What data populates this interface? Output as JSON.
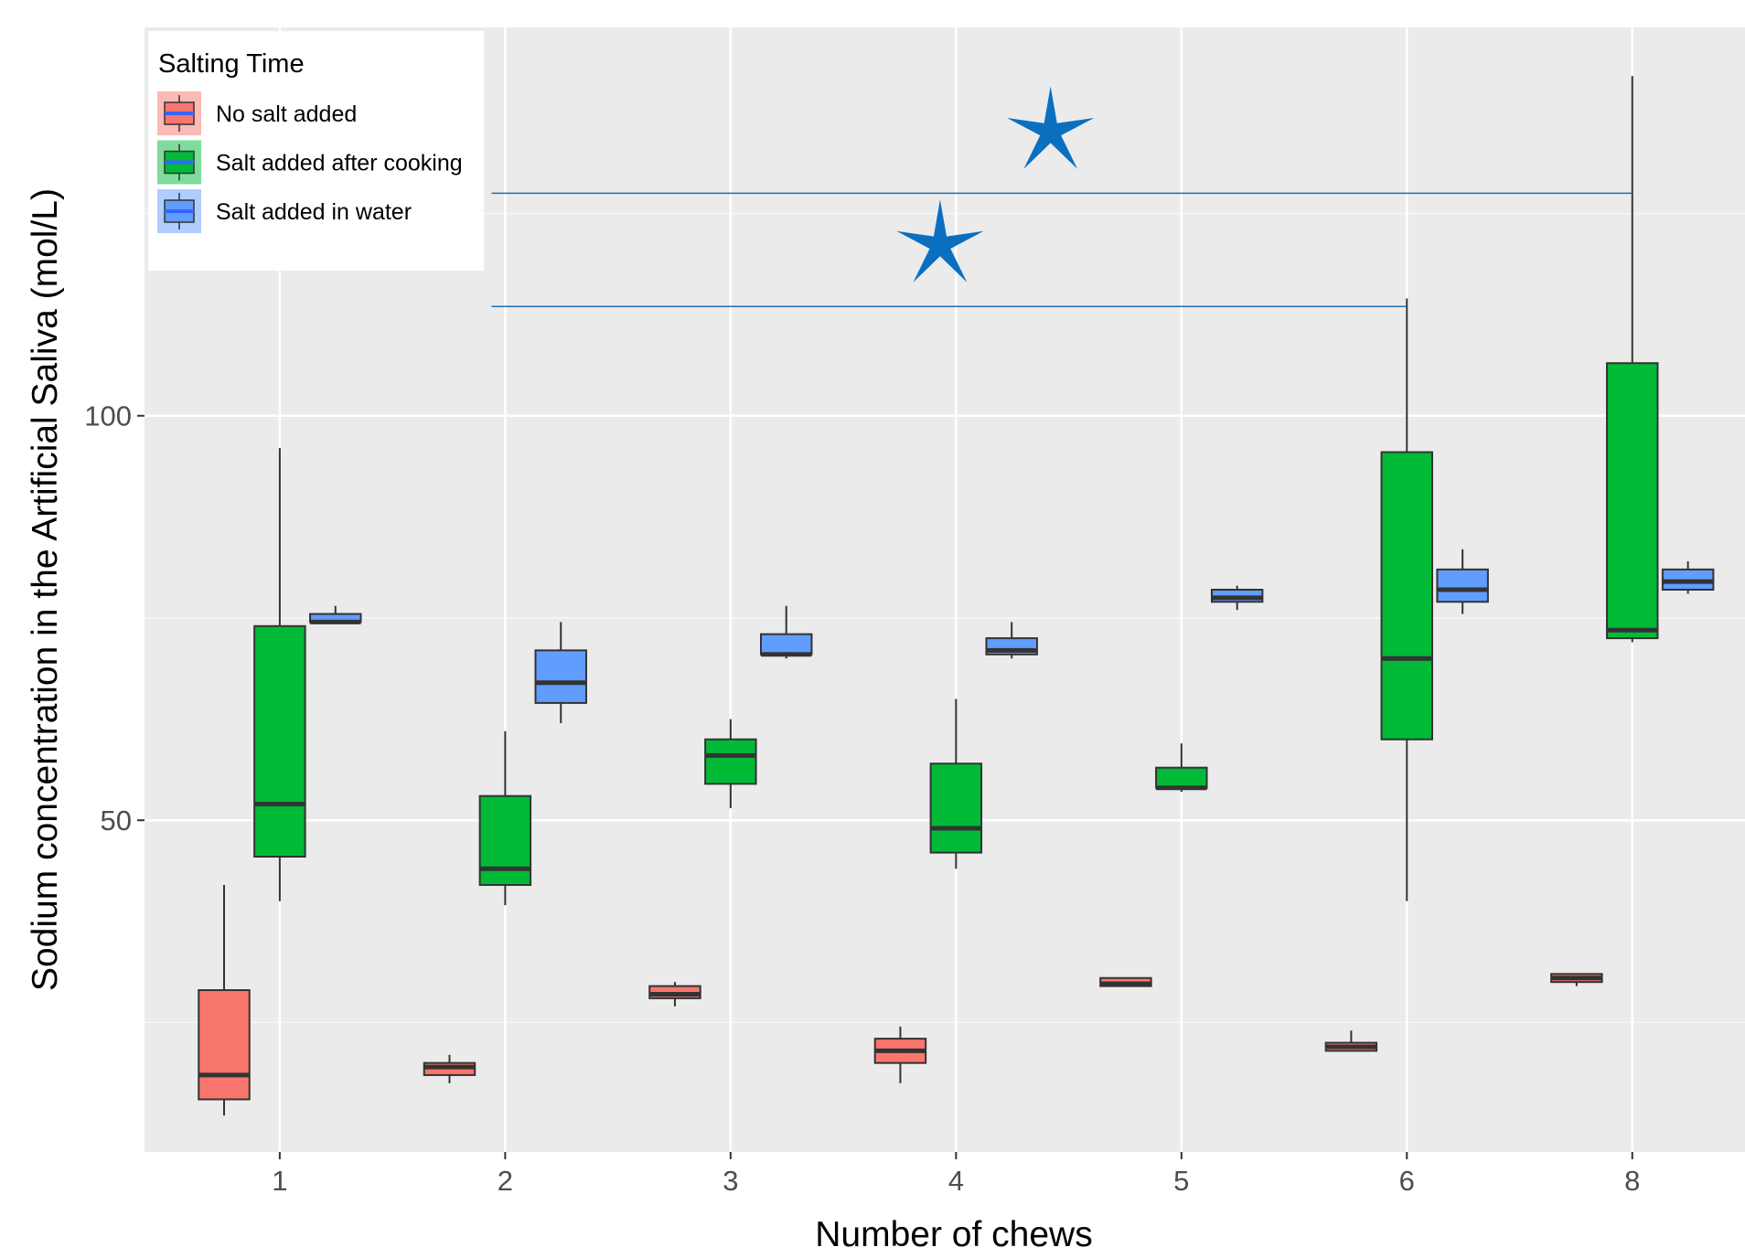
{
  "chart_data": {
    "type": "boxplot",
    "xlabel": "Number of chews",
    "ylabel": "Sodium concentration in the Artificial Saliva (mol/L)",
    "categories": [
      "1",
      "2",
      "3",
      "4",
      "5",
      "6",
      "8"
    ],
    "y_ticks": [
      50,
      100
    ],
    "ylim": [
      9,
      148
    ],
    "grid": true,
    "legend": {
      "title": "Salting Time",
      "position": "top-left"
    },
    "series": [
      {
        "name": "No salt added",
        "color": "#F8766D",
        "boxes": [
          {
            "min": 13.5,
            "q1": 15.5,
            "median": 18.5,
            "q3": 29,
            "max": 42
          },
          {
            "min": 17.5,
            "q1": 18.5,
            "median": 19.5,
            "q3": 20,
            "max": 21
          },
          {
            "min": 27,
            "q1": 28,
            "median": 28.5,
            "q3": 29.5,
            "max": 30
          },
          {
            "min": 17.5,
            "q1": 20,
            "median": 21.5,
            "q3": 23,
            "max": 24.5
          },
          {
            "min": 29.5,
            "q1": 29.5,
            "median": 29.8,
            "q3": 30.5,
            "max": 30.5
          },
          {
            "min": 21.5,
            "q1": 21.5,
            "median": 22,
            "q3": 22.5,
            "max": 24
          },
          {
            "min": 29.5,
            "q1": 30,
            "median": 30.5,
            "q3": 31,
            "max": 31
          }
        ]
      },
      {
        "name": "Salt added after cooking",
        "color": "#00BA38",
        "boxes": [
          {
            "min": 40,
            "q1": 45.5,
            "median": 52,
            "q3": 74,
            "max": 96
          },
          {
            "min": 39.5,
            "q1": 42,
            "median": 44,
            "q3": 53,
            "max": 61
          },
          {
            "min": 51.5,
            "q1": 54.5,
            "median": 58,
            "q3": 60,
            "max": 62.5
          },
          {
            "min": 44,
            "q1": 46,
            "median": 49,
            "q3": 57,
            "max": 65
          },
          {
            "min": 53.5,
            "q1": 54,
            "median": 54,
            "q3": 56.5,
            "max": 59.5
          },
          {
            "min": 40,
            "q1": 60,
            "median": 70,
            "q3": 95.5,
            "max": 114.5
          },
          {
            "min": 72,
            "q1": 72.5,
            "median": 73.5,
            "q3": 106.5,
            "max": 142
          }
        ]
      },
      {
        "name": "Salt added in water",
        "color": "#619CFF",
        "boxes": [
          {
            "min": 74.5,
            "q1": 74.5,
            "median": 74.5,
            "q3": 75.5,
            "max": 76.5
          },
          {
            "min": 62,
            "q1": 64.5,
            "median": 67,
            "q3": 71,
            "max": 74.5
          },
          {
            "min": 70,
            "q1": 70.5,
            "median": 70.5,
            "q3": 73,
            "max": 76.5
          },
          {
            "min": 70,
            "q1": 70.5,
            "median": 71,
            "q3": 72.5,
            "max": 74.5
          },
          {
            "min": 76,
            "q1": 77,
            "median": 77.5,
            "q3": 78.5,
            "max": 79
          },
          {
            "min": 75.5,
            "q1": 77,
            "median": 78.5,
            "q3": 81,
            "max": 83.5
          },
          {
            "min": 78,
            "q1": 78.5,
            "median": 79.5,
            "q3": 81,
            "max": 82
          }
        ]
      }
    ],
    "annotations": [
      {
        "type": "significance-bracket",
        "from_category": "2",
        "to_category": "6",
        "y": 113.5,
        "marker": "star"
      },
      {
        "type": "significance-bracket",
        "from_category": "2",
        "to_category": "8",
        "y": 127.5,
        "marker": "star"
      }
    ]
  }
}
